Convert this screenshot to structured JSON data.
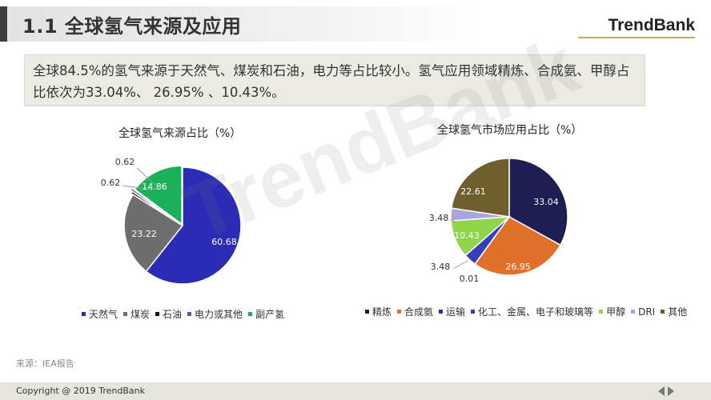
{
  "header": {
    "title": "1.1 全球氢气来源及应用",
    "brand": "TrendBank"
  },
  "summary": {
    "text": "全球84.5%的氢气来源于天然气、煤炭和石油，电力等占比较小。氢气应用领域精炼、合成氨、甲醇占比依次为33.04%、 26.95% 、10.43%。"
  },
  "watermark": "TrendBank",
  "chart_data": [
    {
      "type": "pie",
      "title": "全球氢气来源占比（%）",
      "legend_position": "bottom",
      "slices": [
        {
          "name": "天然气",
          "value": 60.68,
          "label": "60.68",
          "color": "#2b2bb5"
        },
        {
          "name": "煤炭",
          "value": 23.22,
          "label": "23.22",
          "color": "#6e6e6e"
        },
        {
          "name": "石油",
          "value": 0.62,
          "label": "0.62",
          "color": "#0d0d35"
        },
        {
          "name": "电力或其他",
          "value": 0.62,
          "label": "0.62",
          "color": "#5558a8"
        },
        {
          "name": "副产氢",
          "value": 14.86,
          "label": "14.86",
          "color": "#1bb15a"
        }
      ]
    },
    {
      "type": "pie",
      "title": "全球氢气市场应用占比（%）",
      "legend_position": "bottom",
      "slices": [
        {
          "name": "精炼",
          "value": 33.04,
          "label": "33.04",
          "color": "#1e1e52"
        },
        {
          "name": "合成氨",
          "value": 26.95,
          "label": "26.95",
          "color": "#e0702a"
        },
        {
          "name": "运输",
          "value": 0.01,
          "label": "0.01",
          "color": "#2330a8"
        },
        {
          "name": "化工、金属、电子和玻璃等",
          "value": 3.48,
          "label": "3.48",
          "color": "#3340b8"
        },
        {
          "name": "甲醇",
          "value": 10.43,
          "label": "10.43",
          "color": "#8fd44a"
        },
        {
          "name": "DRI",
          "value": 3.48,
          "label": "3.48",
          "color": "#a9a6dd"
        },
        {
          "name": "其他",
          "value": 22.61,
          "label": "22.61",
          "color": "#6f5f2e"
        }
      ]
    }
  ],
  "source": "来源：IEA报告",
  "footer": {
    "copyright": "Copyright @ 2019 TrendBank"
  }
}
